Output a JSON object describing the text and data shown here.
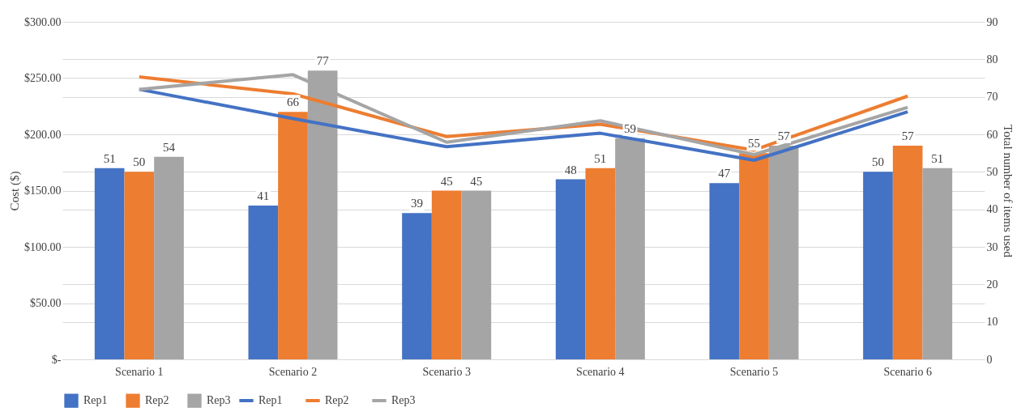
{
  "chart_data": {
    "type": "bar",
    "categories": [
      "Scenario 1",
      "Scenario 2",
      "Scenario 3",
      "Scenario 4",
      "Scenario 5",
      "Scenario 6"
    ],
    "ylabel": "Cost ($)",
    "y2label": "Total number of items used",
    "ylim": [
      0,
      300
    ],
    "yticks": [
      {
        "value": 0,
        "label": "$-"
      },
      {
        "value": 50,
        "label": "$50.00"
      },
      {
        "value": 100,
        "label": "$100.00"
      },
      {
        "value": 150,
        "label": "$150.00"
      },
      {
        "value": 200,
        "label": "$200.00"
      },
      {
        "value": 250,
        "label": "$250.00"
      },
      {
        "value": 300,
        "label": "$300.00"
      }
    ],
    "y2lim": [
      0,
      90
    ],
    "y2ticks": [
      0,
      10,
      20,
      30,
      40,
      50,
      60,
      70,
      80,
      90
    ],
    "grid": "y",
    "legend": "bottom",
    "line_style": "solid",
    "series": [
      {
        "name": "Rep1",
        "type": "bar",
        "axis": "y2",
        "color": "#4472c4",
        "values": [
          51,
          41,
          39,
          48,
          47,
          50
        ],
        "value_labels": [
          "51",
          "41",
          "39",
          "48",
          "47",
          "50"
        ]
      },
      {
        "name": "Rep2",
        "type": "bar",
        "axis": "y2",
        "color": "#ed7d31",
        "values": [
          50,
          66,
          45,
          51,
          55,
          57
        ],
        "value_labels": [
          "50",
          "66",
          "45",
          "51",
          "55",
          "57"
        ]
      },
      {
        "name": "Rep3",
        "type": "bar",
        "axis": "y2",
        "color": "#a5a5a5",
        "values": [
          54,
          77,
          45,
          59,
          57,
          51
        ],
        "value_labels": [
          "54",
          "77",
          "45",
          "59",
          "57",
          "51"
        ]
      },
      {
        "name": "Rep1",
        "type": "line",
        "axis": "y",
        "color": "#4472c4",
        "values": [
          240,
          214,
          189,
          201,
          177,
          220
        ]
      },
      {
        "name": "Rep2",
        "type": "line",
        "axis": "y",
        "color": "#ed7d31",
        "values": [
          251,
          236,
          198,
          209,
          186,
          234
        ]
      },
      {
        "name": "Rep3",
        "type": "line",
        "axis": "y",
        "color": "#a5a5a5",
        "values": [
          240,
          253,
          193,
          212,
          182,
          224
        ]
      }
    ]
  }
}
